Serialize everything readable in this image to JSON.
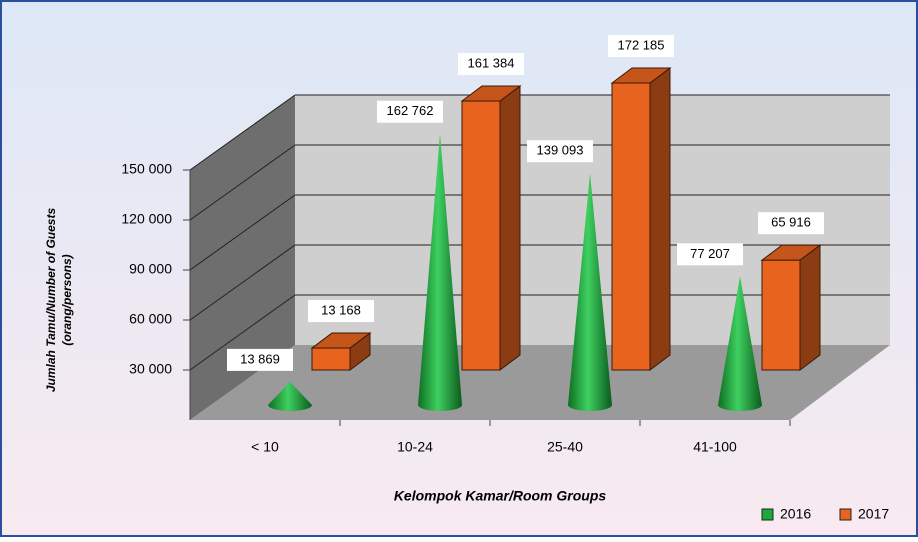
{
  "chart_data": {
    "type": "bar",
    "y_label": "Jumlah Tamu/Number of Guests",
    "y_label_unit": "(orang/persons)",
    "x_label": "Kelompok Kamar/Room Groups",
    "categories": [
      "< 10",
      "10-24",
      "25-40",
      "41-100"
    ],
    "series": [
      {
        "name": "2016",
        "color": "#1ea83c",
        "shape": "cone",
        "values": [
          13869,
          162762,
          139093,
          77207
        ],
        "value_labels": [
          "13 869",
          "162 762",
          "139 093",
          "77 207"
        ]
      },
      {
        "name": "2017",
        "color": "#e8641e",
        "shape": "box",
        "values": [
          13168,
          161384,
          172185,
          65916
        ],
        "value_labels": [
          "13 168",
          "161 384",
          "172 185",
          "65 916"
        ]
      }
    ],
    "ylim": [
      0,
      150000
    ],
    "yticks": [
      {
        "value": 30000,
        "label": "30 000"
      },
      {
        "value": 60000,
        "label": "60 000"
      },
      {
        "value": 90000,
        "label": "90 000"
      },
      {
        "value": 120000,
        "label": "120 000"
      },
      {
        "value": 150000,
        "label": "150 000"
      }
    ],
    "grid": true,
    "legend": "bottom-right"
  }
}
